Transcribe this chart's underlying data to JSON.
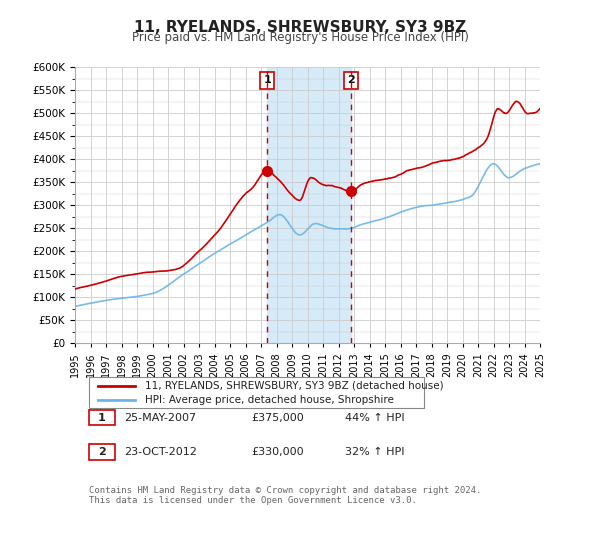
{
  "title": "11, RYELANDS, SHREWSBURY, SY3 9BZ",
  "subtitle": "Price paid vs. HM Land Registry's House Price Index (HPI)",
  "legend_line1": "11, RYELANDS, SHREWSBURY, SY3 9BZ (detached house)",
  "legend_line2": "HPI: Average price, detached house, Shropshire",
  "sale1_label": "1",
  "sale1_date": "25-MAY-2007",
  "sale1_price": "£375,000",
  "sale1_hpi": "44% ↑ HPI",
  "sale1_year": 2007.4,
  "sale1_value": 375000,
  "sale2_label": "2",
  "sale2_date": "23-OCT-2012",
  "sale2_price": "£330,000",
  "sale2_hpi": "32% ↑ HPI",
  "sale2_year": 2012.8,
  "sale2_value": 330000,
  "hpi_color": "#6ab4e8",
  "price_color": "#cc0000",
  "marker_color": "#cc0000",
  "vline_color": "#cc0000",
  "shade_color": "#d6eaf8",
  "grid_color": "#cccccc",
  "background_color": "#ffffff",
  "plot_bg_color": "#ffffff",
  "ylim": [
    0,
    600000
  ],
  "xlim_start": 1995,
  "xlim_end": 2025,
  "footer_text": "Contains HM Land Registry data © Crown copyright and database right 2024.\nThis data is licensed under the Open Government Licence v3.0."
}
